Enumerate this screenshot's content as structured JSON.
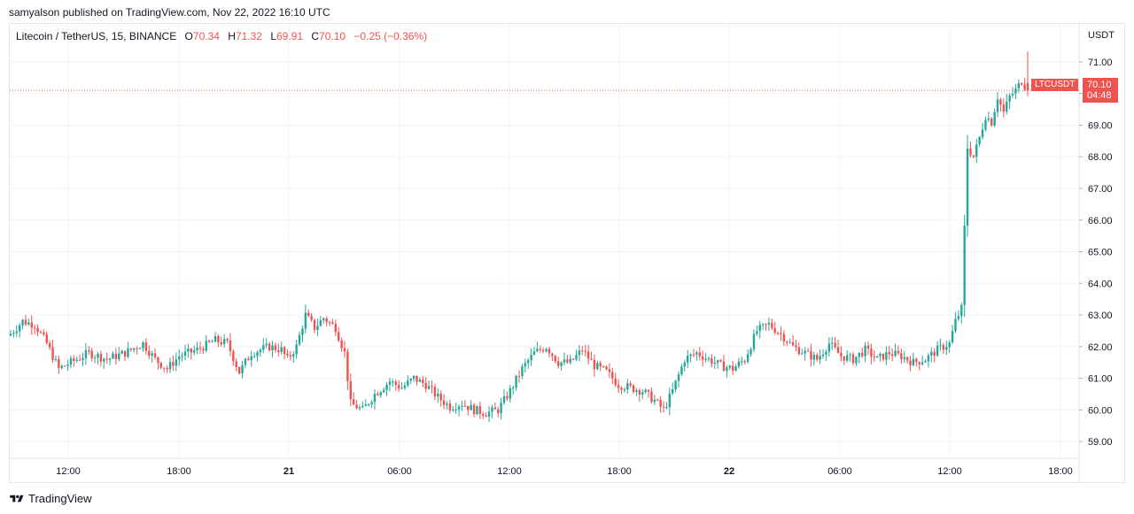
{
  "attribution": "samyalson published on TradingView.com, Nov 22, 2022 16:10 UTC",
  "legend": {
    "symbol": "Litecoin / TetherUS, 15, BINANCE",
    "o_label": "O",
    "o_value": "70.34",
    "h_label": "H",
    "h_value": "71.32",
    "l_label": "L",
    "l_value": "69.91",
    "c_label": "C",
    "c_value": "70.10",
    "change": "−0.25 (−0.36%)"
  },
  "price_unit": "USDT",
  "last_price": {
    "symbol_tag": "LTCUSDT",
    "price": "70.10",
    "countdown": "04:48"
  },
  "brand": "TradingView",
  "colors": {
    "up": "#26a69a",
    "down": "#ef5350",
    "grid": "#f0f3fa",
    "text": "#131722"
  },
  "chart_data": {
    "type": "candlestick",
    "interval": "15",
    "y_ticks": [
      "59.00",
      "60.00",
      "61.00",
      "62.00",
      "63.00",
      "64.00",
      "65.00",
      "66.00",
      "67.00",
      "68.00",
      "69.00",
      "70.00",
      "71.00"
    ],
    "x_ticks": [
      {
        "label": "12:00",
        "bold": false
      },
      {
        "label": "18:00",
        "bold": false
      },
      {
        "label": "21",
        "bold": true
      },
      {
        "label": "06:00",
        "bold": false
      },
      {
        "label": "12:00",
        "bold": false
      },
      {
        "label": "18:00",
        "bold": false
      },
      {
        "label": "22",
        "bold": true
      },
      {
        "label": "06:00",
        "bold": false
      },
      {
        "label": "12:00",
        "bold": false
      },
      {
        "label": "18:00",
        "bold": false
      }
    ],
    "ylim": [
      58.5,
      72.2
    ],
    "last_close": 70.1,
    "anchors": [
      [
        0,
        62.4
      ],
      [
        4,
        62.8
      ],
      [
        8,
        62.7
      ],
      [
        12,
        62.1
      ],
      [
        16,
        61.3
      ],
      [
        20,
        61.5
      ],
      [
        26,
        61.8
      ],
      [
        32,
        61.6
      ],
      [
        38,
        61.8
      ],
      [
        44,
        62.1
      ],
      [
        48,
        61.6
      ],
      [
        52,
        61.3
      ],
      [
        56,
        61.7
      ],
      [
        62,
        61.9
      ],
      [
        68,
        62.2
      ],
      [
        72,
        62.1
      ],
      [
        76,
        61.2
      ],
      [
        80,
        61.8
      ],
      [
        86,
        62.0
      ],
      [
        90,
        61.9
      ],
      [
        92,
        61.6
      ],
      [
        95,
        62.0
      ],
      [
        98,
        63.0
      ],
      [
        101,
        62.6
      ],
      [
        104,
        62.9
      ],
      [
        108,
        62.6
      ],
      [
        111,
        61.8
      ],
      [
        113,
        60.2
      ],
      [
        117,
        60.0
      ],
      [
        121,
        60.5
      ],
      [
        126,
        60.9
      ],
      [
        130,
        60.7
      ],
      [
        134,
        61.0
      ],
      [
        138,
        60.8
      ],
      [
        142,
        60.4
      ],
      [
        146,
        60.1
      ],
      [
        150,
        60.2
      ],
      [
        154,
        60.0
      ],
      [
        158,
        59.9
      ],
      [
        162,
        60.0
      ],
      [
        166,
        60.6
      ],
      [
        170,
        61.3
      ],
      [
        174,
        61.8
      ],
      [
        178,
        62.0
      ],
      [
        182,
        61.5
      ],
      [
        186,
        61.5
      ],
      [
        190,
        61.9
      ],
      [
        194,
        61.4
      ],
      [
        198,
        61.2
      ],
      [
        202,
        60.8
      ],
      [
        206,
        60.7
      ],
      [
        210,
        60.6
      ],
      [
        214,
        60.3
      ],
      [
        217,
        60.0
      ],
      [
        220,
        60.6
      ],
      [
        224,
        61.6
      ],
      [
        228,
        61.8
      ],
      [
        232,
        61.6
      ],
      [
        236,
        61.4
      ],
      [
        240,
        61.3
      ],
      [
        244,
        61.6
      ],
      [
        248,
        62.5
      ],
      [
        252,
        62.7
      ],
      [
        256,
        62.4
      ],
      [
        260,
        62.0
      ],
      [
        264,
        61.8
      ],
      [
        268,
        61.6
      ],
      [
        272,
        62.1
      ],
      [
        276,
        61.7
      ],
      [
        280,
        61.6
      ],
      [
        284,
        61.9
      ],
      [
        288,
        61.6
      ],
      [
        292,
        61.8
      ],
      [
        296,
        61.7
      ],
      [
        300,
        61.5
      ],
      [
        304,
        61.6
      ],
      [
        308,
        61.9
      ],
      [
        312,
        62.1
      ],
      [
        314,
        62.8
      ],
      [
        316,
        63.2
      ],
      [
        318,
        68.3
      ],
      [
        320,
        68.0
      ],
      [
        322,
        68.6
      ],
      [
        324,
        69.3
      ],
      [
        326,
        69.1
      ],
      [
        328,
        69.9
      ],
      [
        330,
        69.4
      ],
      [
        332,
        69.9
      ],
      [
        334,
        70.1
      ],
      [
        336,
        70.4
      ],
      [
        338,
        70.1
      ]
    ]
  }
}
